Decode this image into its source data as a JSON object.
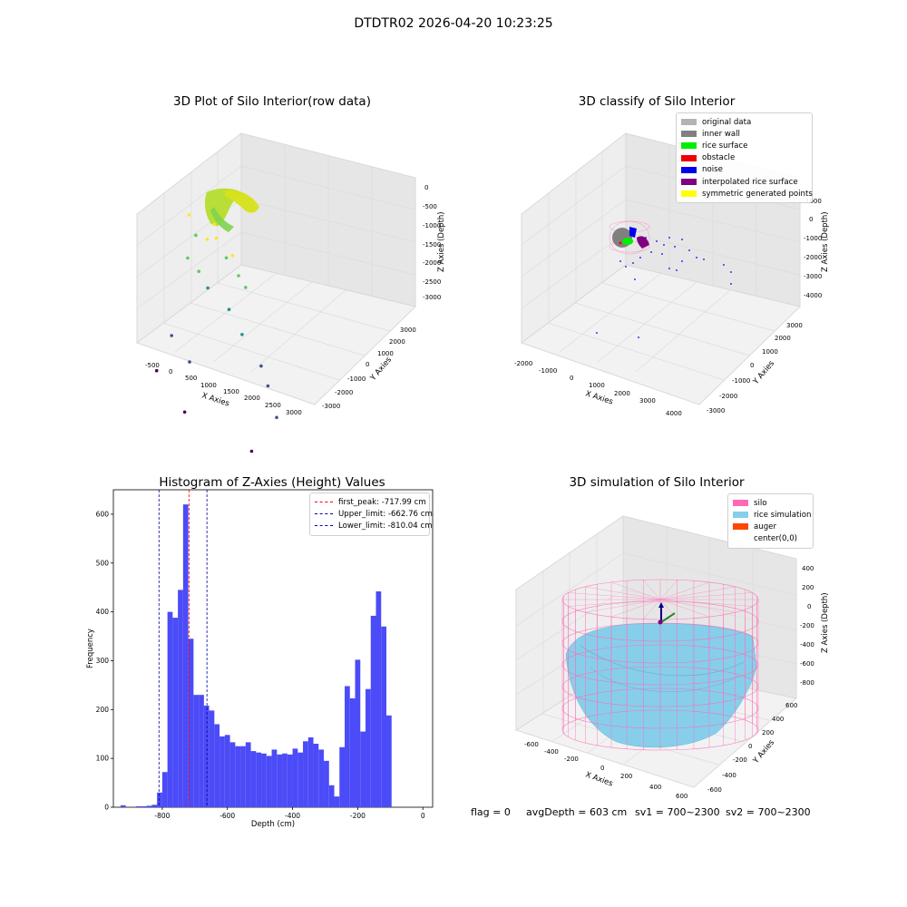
{
  "figure": {
    "suptitle": "DTDTR02 2026-04-20 10:23:25",
    "footer": {
      "flag": "flag = 0",
      "avg": "avgDepth = 603 cm",
      "sv1": "sv1 = 700~2300",
      "sv2": "sv2 = 700~2300"
    }
  },
  "chart_data": [
    {
      "type": "scatter",
      "title": "3D Plot of Silo Interior(row data)",
      "xlabel": "X Axies",
      "ylabel": "Y Axies",
      "zlabel": "Z Axies (Depth)",
      "xticks": [
        "-500",
        "0",
        "500",
        "1000",
        "1500",
        "2000",
        "2500",
        "3000"
      ],
      "yticks": [
        "-3000",
        "-2000",
        "-1000",
        "0",
        "1000",
        "2000",
        "3000"
      ],
      "zticks": [
        "0",
        "-500",
        "-1000",
        "-1500",
        "-2000",
        "-2500",
        "-3000"
      ],
      "colormap": "viridis",
      "points": [
        {
          "x": -480,
          "y": 1500,
          "z": -1300
        },
        {
          "x": -260,
          "y": 1300,
          "z": -1500
        },
        {
          "x": 100,
          "y": 1000,
          "z": -1400
        },
        {
          "x": 220,
          "y": 1200,
          "z": -1200
        },
        {
          "x": 350,
          "y": 900,
          "z": -1300
        },
        {
          "x": 620,
          "y": 800,
          "z": -1500
        },
        {
          "x": 800,
          "y": 700,
          "z": -1400
        },
        {
          "x": 1000,
          "y": 500,
          "z": -1600
        },
        {
          "x": 1200,
          "y": 400,
          "z": -1700
        },
        {
          "x": -300,
          "y": 700,
          "z": -1700
        },
        {
          "x": 0,
          "y": 600,
          "z": -1800
        },
        {
          "x": 300,
          "y": 300,
          "z": -1900
        },
        {
          "x": 900,
          "y": 0,
          "z": -2000
        },
        {
          "x": 1300,
          "y": -300,
          "z": -2200
        },
        {
          "x": 1900,
          "y": -800,
          "z": -2400
        },
        {
          "x": 2200,
          "y": -1300,
          "z": -2500
        },
        {
          "x": 2600,
          "y": -2000,
          "z": -2700
        },
        {
          "x": -400,
          "y": -400,
          "z": -2600
        },
        {
          "x": 200,
          "y": -1000,
          "z": -2700
        },
        {
          "x": -500,
          "y": -1400,
          "z": -2900
        },
        {
          "x": 400,
          "y": -2200,
          "z": -3100
        },
        {
          "x": 2200,
          "y": -2800,
          "z": -3100
        }
      ]
    },
    {
      "type": "scatter",
      "title": "3D classify of Silo Interior",
      "xlabel": "X Axies",
      "ylabel": "Y Axies",
      "zlabel": "Z Axies (Depth)",
      "xticks": [
        "-2000",
        "-1000",
        "0",
        "1000",
        "2000",
        "3000",
        "4000"
      ],
      "yticks": [
        "-3000",
        "-2000",
        "-1000",
        "0",
        "1000",
        "2000",
        "3000"
      ],
      "zticks": [
        "1000",
        "0",
        "-1000",
        "-2000",
        "-3000",
        "-4000"
      ],
      "legend": [
        {
          "label": "original data",
          "color": "#b3b3b3"
        },
        {
          "label": "inner wall",
          "color": "#808080"
        },
        {
          "label": "rice surface",
          "color": "#00ee00"
        },
        {
          "label": "obstacle",
          "color": "#ee0000"
        },
        {
          "label": "noise",
          "color": "#0000ee"
        },
        {
          "label": "interpolated rice surface",
          "color": "#800080"
        },
        {
          "label": "symmetric generated points",
          "color": "#ffff00"
        }
      ]
    },
    {
      "type": "bar",
      "title": "Histogram of Z-Axies (Height) Values",
      "xlabel": "Depth (cm)",
      "ylabel": "Frequency",
      "xlim": [
        -950,
        30
      ],
      "ylim": [
        0,
        650
      ],
      "xticks": [
        -800,
        -600,
        -400,
        -200,
        0
      ],
      "yticks": [
        0,
        100,
        200,
        300,
        400,
        500,
        600
      ],
      "color": "#4b4bf8",
      "bin_width": 16,
      "bin_starts": [
        -928,
        -912,
        -896,
        -880,
        -864,
        -848,
        -832,
        -816,
        -800,
        -784,
        -768,
        -752,
        -736,
        -720,
        -704,
        -688,
        -672,
        -656,
        -640,
        -624,
        -608,
        -592,
        -576,
        -560,
        -544,
        -528,
        -512,
        -496,
        -480,
        -464,
        -448,
        -432,
        -416,
        -400,
        -384,
        -368,
        -352,
        -336,
        -320,
        -304,
        -288,
        -272,
        -256,
        -240,
        -224,
        -208,
        -192,
        -176,
        -160,
        -144,
        -128,
        -112,
        -96,
        -80,
        -64,
        -48,
        -32,
        -16
      ],
      "values": [
        4,
        0,
        0,
        2,
        2,
        3,
        5,
        30,
        72,
        400,
        388,
        445,
        620,
        345,
        230,
        230,
        208,
        198,
        170,
        145,
        148,
        133,
        125,
        125,
        133,
        115,
        112,
        110,
        105,
        118,
        108,
        110,
        108,
        120,
        112,
        135,
        143,
        130,
        118,
        95,
        45,
        22,
        123,
        248,
        223,
        302,
        155,
        242,
        392,
        442,
        370,
        188,
        0,
        0,
        0,
        0,
        0,
        0
      ],
      "lines": [
        {
          "label": "first_peak: -717.99 cm",
          "x": -717.99,
          "color": "#ff0000"
        },
        {
          "label": "Upper_limit: -662.76 cm",
          "x": -662.76,
          "color": "#0000aa"
        },
        {
          "label": "Lower_limit: -810.04 cm",
          "x": -810.04,
          "color": "#0000aa"
        }
      ]
    },
    {
      "type": "surface",
      "title": "3D simulation of Silo Interior",
      "xlabel": "X Axies",
      "ylabel": "Y Axies",
      "zlabel": "Z Axies (Depth)",
      "xticks": [
        "-600",
        "-400",
        "-200",
        "0",
        "200",
        "400",
        "600"
      ],
      "yticks": [
        "-600",
        "-400",
        "-200",
        "0",
        "200",
        "400",
        "600"
      ],
      "zticks": [
        "400",
        "200",
        "0",
        "-200",
        "-400",
        "-600",
        "-800"
      ],
      "legend": [
        {
          "label": "silo",
          "color": "#ff69b4"
        },
        {
          "label": "rice simulation",
          "color": "#87ceeb"
        },
        {
          "label": "auger",
          "color": "#ff4500"
        },
        {
          "label": "center(0,0)",
          "color": ""
        }
      ]
    }
  ]
}
